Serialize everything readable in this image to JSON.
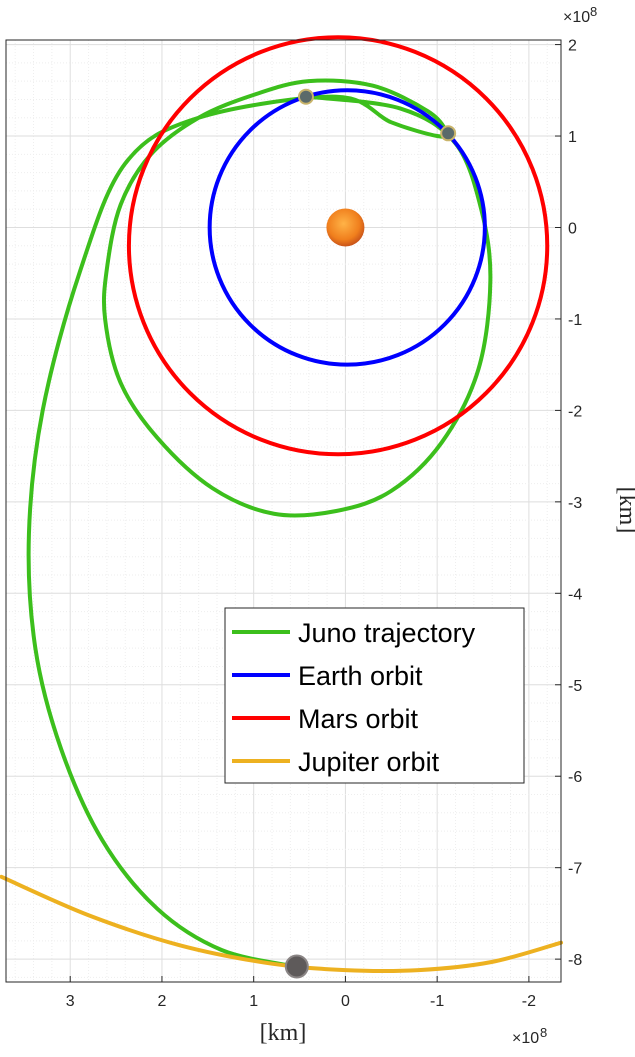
{
  "chart_data": {
    "type": "line",
    "title": "",
    "xlabel": "[km]",
    "ylabel": "[km]",
    "x_exponent": "×10",
    "x_exponent_power": "8",
    "y_exponent": "×10",
    "y_exponent_power": "8",
    "xlim": [
      -2.35,
      3.7
    ],
    "ylim": [
      -8.25,
      2.05
    ],
    "x_reversed": true,
    "x_ticks": [
      3,
      2,
      1,
      0,
      -1,
      -2
    ],
    "x_tick_labels": [
      "3",
      "2",
      "1",
      "0",
      "-1",
      "-2"
    ],
    "y_ticks": [
      2,
      1,
      0,
      -1,
      -2,
      -3,
      -4,
      -5,
      -6,
      -7,
      -8
    ],
    "y_tick_labels": [
      "2",
      "1",
      "0",
      "-1",
      "-2",
      "-3",
      "-4",
      "-5",
      "-6",
      "-7",
      "-8"
    ],
    "grid": true,
    "minor_grid": true,
    "legend_position": "lower-right",
    "series": [
      {
        "name": "Juno trajectory",
        "color": "#3cbf1c",
        "points": [
          [
            0.42,
            1.43
          ],
          [
            -0.6,
            1.3
          ],
          [
            -1.2,
            0.92
          ],
          [
            -1.48,
            0.2
          ],
          [
            -1.58,
            -0.58
          ],
          [
            -1.45,
            -1.55
          ],
          [
            -1.05,
            -2.35
          ],
          [
            -0.5,
            -2.88
          ],
          [
            0.1,
            -3.1
          ],
          [
            0.78,
            -3.13
          ],
          [
            1.45,
            -2.85
          ],
          [
            2.05,
            -2.3
          ],
          [
            2.45,
            -1.7
          ],
          [
            2.62,
            -1.0
          ],
          [
            2.6,
            -0.45
          ],
          [
            2.45,
            0.25
          ],
          [
            2.12,
            0.8
          ],
          [
            1.6,
            1.2
          ],
          [
            1.0,
            1.45
          ],
          [
            0.4,
            1.6
          ],
          [
            -0.3,
            1.55
          ],
          [
            -0.9,
            1.27
          ],
          [
            -1.1,
            1.04
          ],
          [
            -1.0,
            1.0
          ],
          [
            -0.5,
            1.15
          ],
          [
            0.1,
            1.43
          ],
          [
            1.6,
            1.2
          ],
          [
            2.4,
            0.7
          ],
          [
            2.9,
            -0.5
          ],
          [
            3.3,
            -2.0
          ],
          [
            3.45,
            -3.35
          ],
          [
            3.38,
            -4.6
          ],
          [
            3.1,
            -5.7
          ],
          [
            2.65,
            -6.7
          ],
          [
            2.05,
            -7.45
          ],
          [
            1.35,
            -7.9
          ],
          [
            0.55,
            -8.08
          ]
        ]
      },
      {
        "name": "Earth orbit",
        "color": "#0000ff",
        "cx": -0.02,
        "cy": 0.0,
        "rx": 1.5,
        "ry": 1.5
      },
      {
        "name": "Mars orbit",
        "color": "#ff0000",
        "cx": 0.08,
        "cy": -0.2,
        "rx": 2.28,
        "ry": 2.28
      },
      {
        "name": "Jupiter orbit",
        "color": "#edb120",
        "points": [
          [
            3.75,
            -7.1
          ],
          [
            2.8,
            -7.52
          ],
          [
            1.8,
            -7.85
          ],
          [
            0.8,
            -8.05
          ],
          [
            0.0,
            -8.12
          ],
          [
            -0.8,
            -8.12
          ],
          [
            -1.6,
            -8.03
          ],
          [
            -2.35,
            -7.82
          ]
        ]
      }
    ],
    "markers": [
      {
        "name": "sun",
        "x": 0.0,
        "y": 0.0,
        "color": "#f07f1d"
      },
      {
        "name": "earth-position-1",
        "x": 0.43,
        "y": 1.43,
        "color": "#5a6a6a"
      },
      {
        "name": "earth-position-2",
        "x": -1.12,
        "y": 1.03,
        "color": "#5a6a6a"
      },
      {
        "name": "jupiter-position",
        "x": 0.53,
        "y": -8.08,
        "color": "#5e5a5a"
      }
    ]
  }
}
